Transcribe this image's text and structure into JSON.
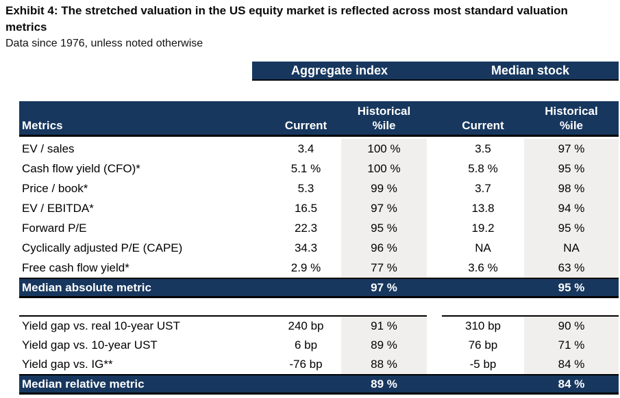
{
  "exhibit": {
    "title_line1": "Exhibit 4: The stretched valuation in the US equity market is reflected across most standard valuation",
    "title_line2": "metrics",
    "subtitle": "Data since 1976, unless noted otherwise"
  },
  "group_headers": {
    "aggregate": "Aggregate index",
    "median": "Median stock"
  },
  "columns": {
    "metrics": "Metrics",
    "current": "Current",
    "historical_line1": "Historical",
    "historical_line2": "%ile"
  },
  "colors": {
    "navy": "#17375E",
    "stripe_gray": "#F0EFED",
    "text": "#000000"
  },
  "absolute_rows": [
    {
      "label": "EV / sales",
      "current1": "3.4",
      "pct1": "100 %",
      "current2": "3.5",
      "pct2": "97 %"
    },
    {
      "label": "Cash flow yield (CFO)*",
      "current1": "5.1 %",
      "pct1": "100 %",
      "current2": "5.8 %",
      "pct2": "95 %"
    },
    {
      "label": "Price / book*",
      "current1": "5.3",
      "pct1": "99 %",
      "current2": "3.7",
      "pct2": "98 %"
    },
    {
      "label": "EV / EBITDA*",
      "current1": "16.5",
      "pct1": "97 %",
      "current2": "13.8",
      "pct2": "94 %"
    },
    {
      "label": "Forward P/E",
      "current1": "22.3",
      "pct1": "95 %",
      "current2": "19.2",
      "pct2": "95 %"
    },
    {
      "label": "Cyclically adjusted P/E (CAPE)",
      "current1": "34.3",
      "pct1": "96 %",
      "current2": "NA",
      "pct2": "NA"
    },
    {
      "label": "Free cash flow yield*",
      "current1": "2.9 %",
      "pct1": "77 %",
      "current2": "3.6 %",
      "pct2": "63 %"
    }
  ],
  "median_absolute": {
    "label": "Median absolute metric",
    "pct1": "97 %",
    "pct2": "95 %"
  },
  "relative_rows": [
    {
      "label": "Yield gap vs. real 10-year UST",
      "current1": "240 bp",
      "pct1": "91 %",
      "current2": "310 bp",
      "pct2": "90 %"
    },
    {
      "label": "Yield gap vs. 10-year UST",
      "current1": "6 bp",
      "pct1": "89 %",
      "current2": "76 bp",
      "pct2": "71 %"
    },
    {
      "label": "Yield gap vs. IG**",
      "current1": "-76 bp",
      "pct1": "88 %",
      "current2": "-5 bp",
      "pct2": "84 %"
    }
  ],
  "median_relative": {
    "label": "Median relative metric",
    "pct1": "89 %",
    "pct2": "84 %"
  }
}
